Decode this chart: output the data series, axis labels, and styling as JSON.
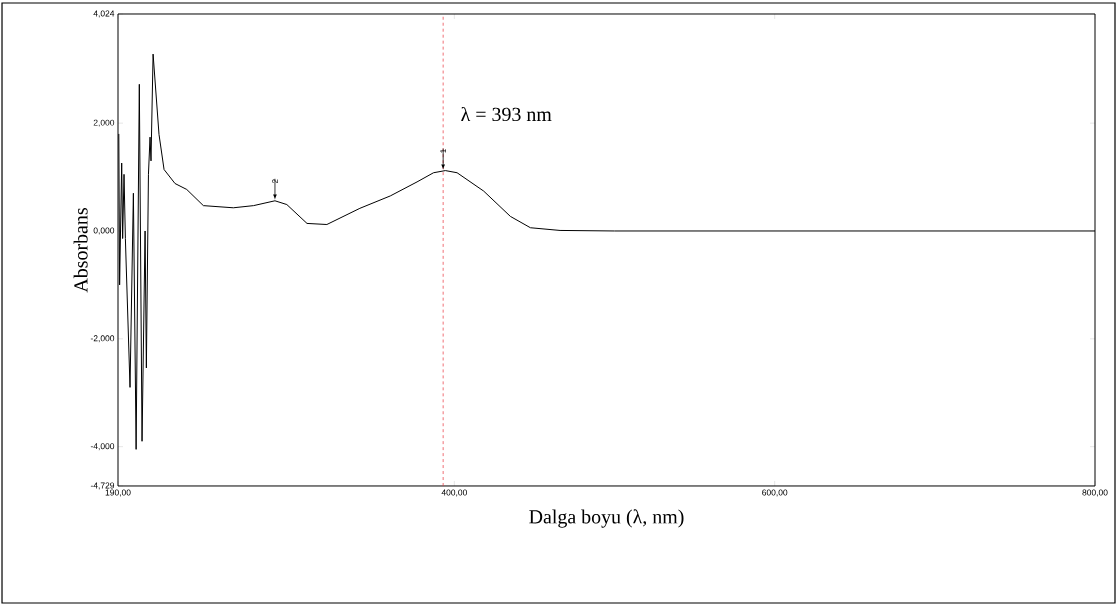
{
  "chart_data": {
    "type": "line",
    "xlabel": "Dalga boyu (λ, nm)",
    "ylabel": "Absorbans",
    "xlim": [
      190,
      800
    ],
    "ylim": [
      -4.729,
      4.024
    ],
    "xticks": [
      {
        "value": 190,
        "label": "190,00"
      },
      {
        "value": 400,
        "label": "400,00"
      },
      {
        "value": 600,
        "label": "600,00"
      },
      {
        "value": 800,
        "label": "800,00"
      }
    ],
    "yticks": [
      {
        "value": -4.729,
        "label": "-4,729"
      },
      {
        "value": -4,
        "label": "-4,000"
      },
      {
        "value": -2,
        "label": "-2,000"
      },
      {
        "value": 0,
        "label": "0,000"
      },
      {
        "value": 2,
        "label": "2,000"
      },
      {
        "value": 4.024,
        "label": "4,024"
      }
    ],
    "grid": false,
    "marker": "none",
    "line_style": "solid",
    "series": [
      {
        "color": "#000000",
        "x": [
          190.5,
          191,
          192.3,
          192.9,
          193.75,
          194.6,
          197.5,
          199.6,
          201.3,
          203.3,
          205,
          206.9,
          207.7,
          209,
          210,
          210.6,
          211.9,
          215.6,
          218.75,
          225.6,
          232.9,
          243.3,
          262,
          274.6,
          288,
          295.4,
          308,
          320.4,
          341,
          360,
          376.7,
          387,
          394.4,
          401.7,
          418.3,
          435,
          447.5,
          466,
          500,
          600,
          700,
          800
        ],
        "values": [
          1.8,
          -1.0,
          1.26,
          -0.14,
          1.05,
          -0.14,
          -2.9,
          0.7,
          -4.05,
          2.72,
          -3.9,
          0.0,
          -2.54,
          1.05,
          1.74,
          1.3,
          3.28,
          1.79,
          1.14,
          0.88,
          0.77,
          0.47,
          0.43,
          0.47,
          0.56,
          0.49,
          0.14,
          0.12,
          0.42,
          0.65,
          0.91,
          1.08,
          1.12,
          1.08,
          0.74,
          0.27,
          0.06,
          0.01,
          0.0,
          0.0,
          0.0,
          0.0
        ]
      }
    ],
    "ref_lines": [
      {
        "axis": "x",
        "value": 393,
        "label": "λ = 393 nm",
        "color": "#e8303a",
        "line_style": "dashed"
      }
    ],
    "annotations": [
      {
        "text": "1",
        "x": 393,
        "y": 1.12
      },
      {
        "text": "2",
        "x": 288,
        "y": 0.56
      }
    ]
  }
}
